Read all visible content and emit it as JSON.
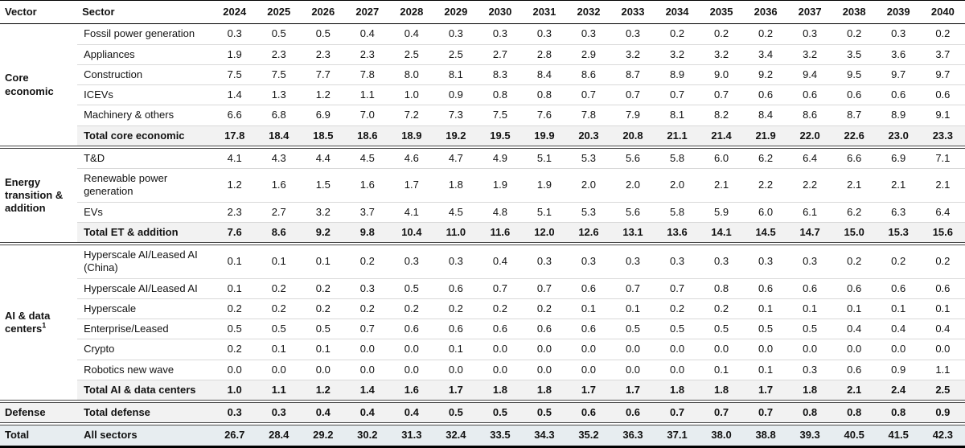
{
  "colors": {
    "total_row_bg": "#f2f2f2",
    "grand_total_bg": "#e7edf0",
    "rule_dark": "#4a4a4a",
    "rule_light": "#d9d9d9",
    "text": "#121212"
  },
  "chart_data": {
    "type": "table",
    "title": "",
    "columns": [
      "Vector",
      "Sector",
      "2024",
      "2025",
      "2026",
      "2027",
      "2028",
      "2029",
      "2030",
      "2031",
      "2032",
      "2033",
      "2034",
      "2035",
      "2036",
      "2037",
      "2038",
      "2039",
      "2040"
    ],
    "groups": [
      {
        "vector": "Core economic",
        "footnote": "",
        "rows": [
          {
            "sector": "Fossil power generation",
            "style": "normal",
            "values": [
              "0.3",
              "0.5",
              "0.5",
              "0.4",
              "0.4",
              "0.3",
              "0.3",
              "0.3",
              "0.3",
              "0.3",
              "0.2",
              "0.2",
              "0.2",
              "0.3",
              "0.2",
              "0.3",
              "0.2"
            ]
          },
          {
            "sector": "Appliances",
            "style": "normal",
            "values": [
              "1.9",
              "2.3",
              "2.3",
              "2.3",
              "2.5",
              "2.5",
              "2.7",
              "2.8",
              "2.9",
              "3.2",
              "3.2",
              "3.2",
              "3.4",
              "3.2",
              "3.5",
              "3.6",
              "3.7"
            ]
          },
          {
            "sector": "Construction",
            "style": "normal",
            "values": [
              "7.5",
              "7.5",
              "7.7",
              "7.8",
              "8.0",
              "8.1",
              "8.3",
              "8.4",
              "8.6",
              "8.7",
              "8.9",
              "9.0",
              "9.2",
              "9.4",
              "9.5",
              "9.7",
              "9.7"
            ]
          },
          {
            "sector": "ICEVs",
            "style": "normal",
            "values": [
              "1.4",
              "1.3",
              "1.2",
              "1.1",
              "1.0",
              "0.9",
              "0.8",
              "0.8",
              "0.7",
              "0.7",
              "0.7",
              "0.7",
              "0.6",
              "0.6",
              "0.6",
              "0.6",
              "0.6"
            ]
          },
          {
            "sector": "Machinery & others",
            "style": "normal",
            "values": [
              "6.6",
              "6.8",
              "6.9",
              "7.0",
              "7.2",
              "7.3",
              "7.5",
              "7.6",
              "7.8",
              "7.9",
              "8.1",
              "8.2",
              "8.4",
              "8.6",
              "8.7",
              "8.9",
              "9.1"
            ]
          },
          {
            "sector": "Total core economic",
            "style": "total",
            "values": [
              "17.8",
              "18.4",
              "18.5",
              "18.6",
              "18.9",
              "19.2",
              "19.5",
              "19.9",
              "20.3",
              "20.8",
              "21.1",
              "21.4",
              "21.9",
              "22.0",
              "22.6",
              "23.0",
              "23.3"
            ]
          }
        ]
      },
      {
        "vector": "Energy transition & addition",
        "footnote": "",
        "rows": [
          {
            "sector": "T&D",
            "style": "normal",
            "values": [
              "4.1",
              "4.3",
              "4.4",
              "4.5",
              "4.6",
              "4.7",
              "4.9",
              "5.1",
              "5.3",
              "5.6",
              "5.8",
              "6.0",
              "6.2",
              "6.4",
              "6.6",
              "6.9",
              "7.1"
            ]
          },
          {
            "sector": "Renewable power generation",
            "style": "normal",
            "values": [
              "1.2",
              "1.6",
              "1.5",
              "1.6",
              "1.7",
              "1.8",
              "1.9",
              "1.9",
              "2.0",
              "2.0",
              "2.0",
              "2.1",
              "2.2",
              "2.2",
              "2.1",
              "2.1",
              "2.1"
            ]
          },
          {
            "sector": "EVs",
            "style": "normal",
            "values": [
              "2.3",
              "2.7",
              "3.2",
              "3.7",
              "4.1",
              "4.5",
              "4.8",
              "5.1",
              "5.3",
              "5.6",
              "5.8",
              "5.9",
              "6.0",
              "6.1",
              "6.2",
              "6.3",
              "6.4"
            ]
          },
          {
            "sector": "Total ET & addition",
            "style": "total",
            "values": [
              "7.6",
              "8.6",
              "9.2",
              "9.8",
              "10.4",
              "11.0",
              "11.6",
              "12.0",
              "12.6",
              "13.1",
              "13.6",
              "14.1",
              "14.5",
              "14.7",
              "15.0",
              "15.3",
              "15.6"
            ]
          }
        ]
      },
      {
        "vector": "AI & data centers",
        "footnote": "1",
        "rows": [
          {
            "sector": "Hyperscale AI/Leased AI (China)",
            "style": "normal",
            "values": [
              "0.1",
              "0.1",
              "0.1",
              "0.2",
              "0.3",
              "0.3",
              "0.4",
              "0.3",
              "0.3",
              "0.3",
              "0.3",
              "0.3",
              "0.3",
              "0.3",
              "0.2",
              "0.2",
              "0.2"
            ]
          },
          {
            "sector": "Hyperscale AI/Leased AI",
            "style": "normal",
            "values": [
              "0.1",
              "0.2",
              "0.2",
              "0.3",
              "0.5",
              "0.6",
              "0.7",
              "0.7",
              "0.6",
              "0.7",
              "0.7",
              "0.8",
              "0.6",
              "0.6",
              "0.6",
              "0.6",
              "0.6"
            ]
          },
          {
            "sector": "Hyperscale",
            "style": "normal",
            "values": [
              "0.2",
              "0.2",
              "0.2",
              "0.2",
              "0.2",
              "0.2",
              "0.2",
              "0.2",
              "0.1",
              "0.1",
              "0.2",
              "0.2",
              "0.1",
              "0.1",
              "0.1",
              "0.1",
              "0.1"
            ]
          },
          {
            "sector": "Enterprise/Leased",
            "style": "normal",
            "values": [
              "0.5",
              "0.5",
              "0.5",
              "0.7",
              "0.6",
              "0.6",
              "0.6",
              "0.6",
              "0.6",
              "0.5",
              "0.5",
              "0.5",
              "0.5",
              "0.5",
              "0.4",
              "0.4",
              "0.4"
            ]
          },
          {
            "sector": "Crypto",
            "style": "normal",
            "values": [
              "0.2",
              "0.1",
              "0.1",
              "0.0",
              "0.0",
              "0.1",
              "0.0",
              "0.0",
              "0.0",
              "0.0",
              "0.0",
              "0.0",
              "0.0",
              "0.0",
              "0.0",
              "0.0",
              "0.0"
            ]
          },
          {
            "sector": "Robotics new wave",
            "style": "normal",
            "values": [
              "0.0",
              "0.0",
              "0.0",
              "0.0",
              "0.0",
              "0.0",
              "0.0",
              "0.0",
              "0.0",
              "0.0",
              "0.0",
              "0.1",
              "0.1",
              "0.3",
              "0.6",
              "0.9",
              "1.1"
            ]
          },
          {
            "sector": "Total AI & data centers",
            "style": "total",
            "values": [
              "1.0",
              "1.1",
              "1.2",
              "1.4",
              "1.6",
              "1.7",
              "1.8",
              "1.8",
              "1.7",
              "1.7",
              "1.8",
              "1.8",
              "1.7",
              "1.8",
              "2.1",
              "2.4",
              "2.5"
            ]
          }
        ]
      },
      {
        "vector": "Defense",
        "footnote": "",
        "rows": [
          {
            "sector": "Total defense",
            "style": "total",
            "values": [
              "0.3",
              "0.3",
              "0.4",
              "0.4",
              "0.4",
              "0.5",
              "0.5",
              "0.5",
              "0.6",
              "0.6",
              "0.7",
              "0.7",
              "0.7",
              "0.8",
              "0.8",
              "0.8",
              "0.9"
            ]
          }
        ]
      },
      {
        "vector": "Total",
        "footnote": "",
        "rows": [
          {
            "sector": "All sectors",
            "style": "grand",
            "values": [
              "26.7",
              "28.4",
              "29.2",
              "30.2",
              "31.3",
              "32.4",
              "33.5",
              "34.3",
              "35.2",
              "36.3",
              "37.1",
              "38.0",
              "38.8",
              "39.3",
              "40.5",
              "41.5",
              "42.3"
            ]
          }
        ]
      }
    ]
  }
}
